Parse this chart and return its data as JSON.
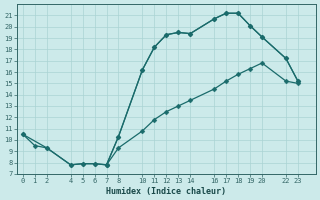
{
  "xlabel": "Humidex (Indice chaleur)",
  "bg_color": "#cceaea",
  "line_color": "#1a6b6b",
  "grid_color": "#aad4d4",
  "ylim": [
    7,
    22
  ],
  "xlim": [
    -0.5,
    24.5
  ],
  "yticks": [
    7,
    8,
    9,
    10,
    11,
    12,
    13,
    14,
    15,
    16,
    17,
    18,
    19,
    20,
    21
  ],
  "xticks": [
    0,
    1,
    2,
    4,
    5,
    6,
    7,
    8,
    10,
    11,
    12,
    13,
    14,
    16,
    17,
    18,
    19,
    20,
    22,
    23
  ],
  "line1_x": [
    0,
    1,
    2,
    4,
    5,
    6,
    7,
    8,
    10,
    11,
    12,
    13,
    14,
    16,
    17,
    18,
    19,
    20,
    22,
    23
  ],
  "line1_y": [
    10.5,
    9.5,
    9.3,
    7.8,
    7.9,
    7.9,
    7.8,
    10.3,
    16.2,
    18.2,
    19.3,
    19.5,
    19.4,
    20.7,
    21.2,
    21.2,
    20.1,
    19.1,
    17.2,
    15.2
  ],
  "line2_x": [
    0,
    2,
    4,
    5,
    6,
    7,
    8,
    10,
    11,
    12,
    13,
    14,
    16,
    17,
    18,
    19,
    20,
    22,
    23
  ],
  "line2_y": [
    10.5,
    9.3,
    7.8,
    7.9,
    7.9,
    7.8,
    9.3,
    10.8,
    11.8,
    12.5,
    13.0,
    13.5,
    14.5,
    15.2,
    15.8,
    16.3,
    16.8,
    15.2,
    15.0
  ],
  "line3_x": [
    7,
    8,
    10,
    11,
    12,
    13,
    14,
    16,
    17,
    18,
    19,
    20,
    22,
    23
  ],
  "line3_y": [
    7.8,
    10.3,
    16.2,
    18.2,
    19.3,
    19.5,
    19.4,
    20.7,
    21.2,
    21.2,
    20.1,
    19.1,
    17.2,
    15.2
  ],
  "marker_size": 2.5,
  "line_width": 0.9
}
